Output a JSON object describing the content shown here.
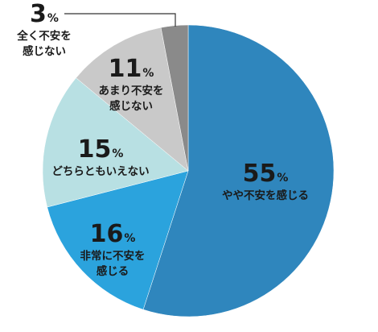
{
  "chart_data": {
    "type": "pie",
    "categories": [
      "やや不安を感じる",
      "非常に不安を感じる",
      "どちらともいえない",
      "あまり不安を感じない",
      "全く不安を感じない"
    ],
    "values": [
      55,
      16,
      15,
      11,
      3
    ],
    "unit": "%",
    "start": "12 o'clock",
    "direction": "clockwise",
    "slices": [
      {
        "num": "55",
        "unit": "%",
        "lines": [
          "やや不安を感じる"
        ],
        "color": "#2f86bd",
        "text_color": "#1a1a1a"
      },
      {
        "num": "16",
        "unit": "%",
        "lines": [
          "非常に不安を",
          "感じる"
        ],
        "color": "#2ba3dd",
        "text_color": "#1a1a1a"
      },
      {
        "num": "15",
        "unit": "%",
        "lines": [
          "どちらともいえない"
        ],
        "color": "#b8e0e3",
        "text_color": "#1a1a1a"
      },
      {
        "num": "11",
        "unit": "%",
        "lines": [
          "あまり不安を",
          "感じない"
        ],
        "color": "#c9c9c9",
        "text_color": "#1a1a1a"
      },
      {
        "num": "3",
        "unit": "%",
        "lines": [
          "全く不安を",
          "感じない"
        ],
        "color": "#8a8a8a",
        "text_color": "#1a1a1a"
      }
    ]
  }
}
